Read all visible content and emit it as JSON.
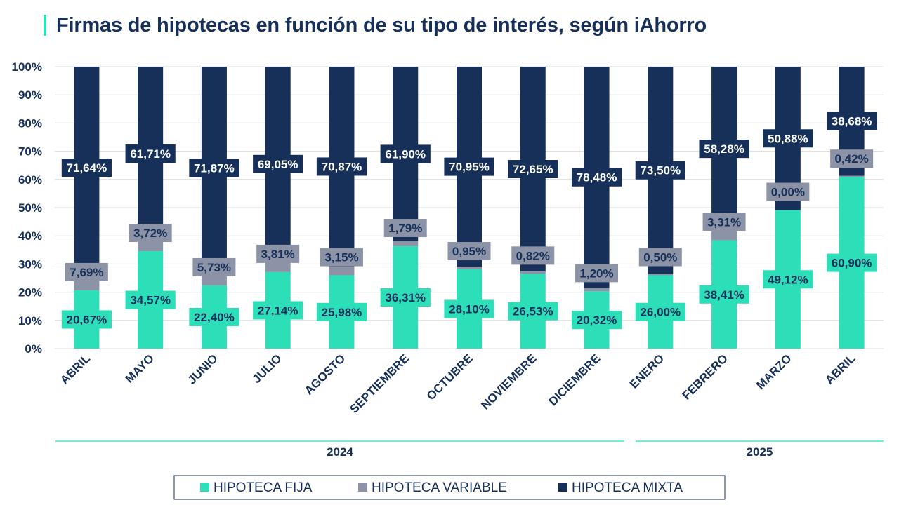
{
  "title": "Firmas de hipotecas en función de su tipo de interés, según iAhorro",
  "colors": {
    "fija": "#2ddfb9",
    "variable": "#8c93a6",
    "mixta": "#17305a",
    "accent": "#2ddfb9",
    "text": "#17305a",
    "grid": "#dcdcdc"
  },
  "chart_data": {
    "type": "bar",
    "stacked": true,
    "categories": [
      "ABRIL",
      "MAYO",
      "JUNIO",
      "JULIO",
      "AGOSTO",
      "SEPTIEMBRE",
      "OCTUBRE",
      "NOVIEMBRE",
      "DICIEMBRE",
      "ENERO",
      "FEBRERO",
      "MARZO",
      "ABRIL"
    ],
    "year_groups": [
      {
        "label": "2024",
        "from": 0,
        "to": 8
      },
      {
        "label": "2025",
        "from": 9,
        "to": 12
      }
    ],
    "series": [
      {
        "name": "HIPOTECA FIJA",
        "key": "fija",
        "values": [
          20.67,
          34.57,
          22.4,
          27.14,
          25.98,
          36.31,
          28.1,
          26.53,
          20.32,
          26.0,
          38.41,
          49.12,
          60.9
        ],
        "labels": [
          "20,67%",
          "34,57%",
          "22,40%",
          "27,14%",
          "25,98%",
          "36,31%",
          "28,10%",
          "26,53%",
          "20,32%",
          "26,00%",
          "38,41%",
          "49,12%",
          "60,90%"
        ]
      },
      {
        "name": "HIPOTECA VARIABLE",
        "key": "variable",
        "values": [
          7.69,
          3.72,
          5.73,
          3.81,
          3.15,
          1.79,
          0.95,
          0.82,
          1.2,
          0.5,
          3.31,
          0.0,
          0.42
        ],
        "labels": [
          "7,69%",
          "3,72%",
          "5,73%",
          "3,81%",
          "3,15%",
          "1,79%",
          "0,95%",
          "0,82%",
          "1,20%",
          "0,50%",
          "3,31%",
          "0,00%",
          "0,42%"
        ]
      },
      {
        "name": "HIPOTECA MIXTA",
        "key": "mixta",
        "values": [
          71.64,
          61.71,
          71.87,
          69.05,
          70.87,
          61.9,
          70.95,
          72.65,
          78.48,
          73.5,
          58.28,
          50.88,
          38.68
        ],
        "labels": [
          "71,64%",
          "61,71%",
          "71,87%",
          "69,05%",
          "70,87%",
          "61,90%",
          "70,95%",
          "72,65%",
          "78,48%",
          "73,50%",
          "58,28%",
          "50,88%",
          "38,68%"
        ]
      }
    ],
    "y_ticks": [
      "0%",
      "10%",
      "20%",
      "30%",
      "40%",
      "50%",
      "60%",
      "70%",
      "80%",
      "90%",
      "100%"
    ],
    "ylim": [
      0,
      100
    ],
    "grid": true,
    "legend_position": "bottom"
  }
}
